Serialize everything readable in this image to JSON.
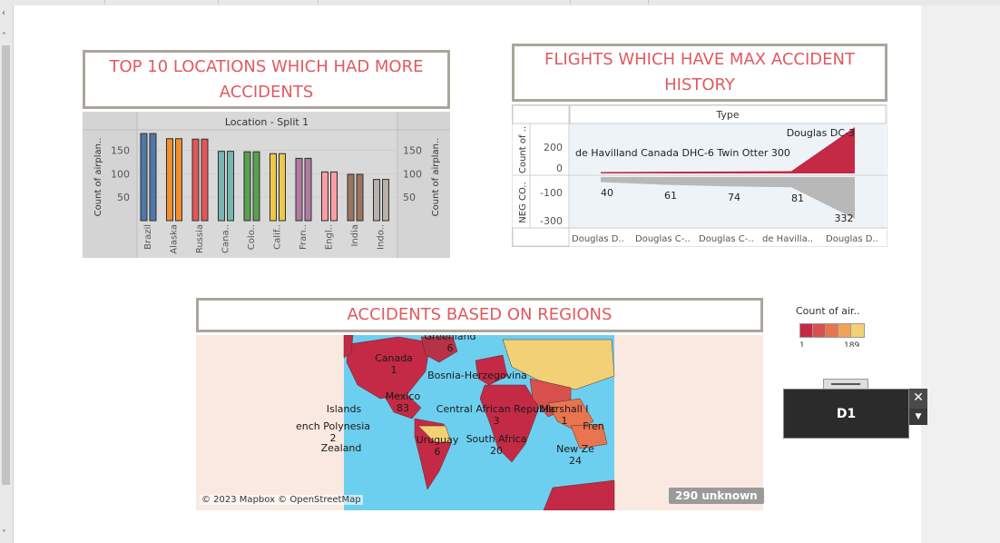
{
  "title_top10": "TOP 10 LOCATIONS WHICH HAD MORE ACCIDENTS",
  "title_flights": "FLIGHTS WHICH HAVE MAX ACCIDENT HISTORY",
  "title_regions": "ACCIDENTS BASED ON REGIONS",
  "chart_data": [
    {
      "type": "bar",
      "header": "Location - Split 1",
      "ylabel": "Count of airplan..",
      "ylabel_right": "Count of airplan..",
      "ylim": [
        0,
        190
      ],
      "yticks": [
        50,
        100,
        150
      ],
      "categories": [
        "Brazil",
        "Alaska",
        "Russia",
        "Cana..",
        "Colo..",
        "Calif..",
        "Fran..",
        "Engl..",
        "India",
        "Indo.."
      ],
      "values": [
        [
          186,
          186
        ],
        [
          175,
          175
        ],
        [
          174,
          174
        ],
        [
          148,
          148
        ],
        [
          147,
          147
        ],
        [
          143,
          143
        ],
        [
          133,
          133
        ],
        [
          104,
          104
        ],
        [
          99,
          99
        ],
        [
          88,
          88
        ]
      ],
      "colors": [
        "#4e79a7",
        "#f28e2b",
        "#e15759",
        "#76b7b2",
        "#59a14f",
        "#edc948",
        "#b07aa1",
        "#ff9da7",
        "#9c755f",
        "#bab0ac"
      ]
    },
    {
      "type": "area",
      "header": "Type",
      "ylabel_top": "Count of ..",
      "ylabel_bottom": "NEG CO..",
      "categories": [
        "Douglas D..",
        "Douglas C-..",
        "Douglas C-..",
        "de Havilla..",
        "Douglas D.."
      ],
      "top_values": [
        10,
        12,
        14,
        16,
        332
      ],
      "bottom_values": [
        -40,
        -61,
        -74,
        -81,
        -332
      ],
      "bottom_labels": [
        "40",
        "61",
        "74",
        "81",
        "332"
      ],
      "top_yticks": [
        "200",
        "0"
      ],
      "bottom_yticks": [
        "-100",
        "-300"
      ],
      "annotations": [
        "de Havilland Canada DHC-6 Twin Otter 300",
        "Douglas DC-3"
      ]
    }
  ],
  "map": {
    "labels": [
      {
        "name": "Greenland",
        "count": "6"
      },
      {
        "name": "Canada",
        "count": "1"
      },
      {
        "name": "Bosnia-Herzegovina",
        "count": ""
      },
      {
        "name": "Mexico",
        "count": "83"
      },
      {
        "name": "Islands",
        "count": ""
      },
      {
        "name": "ench Polynesia",
        "count": "2"
      },
      {
        "name": "Zealand",
        "count": ""
      },
      {
        "name": "Uruguay",
        "count": "6"
      },
      {
        "name": "Central African Republic",
        "count": "3"
      },
      {
        "name": "South Africa",
        "count": "20"
      },
      {
        "name": "Marshall I",
        "count": "1"
      },
      {
        "name": "Fren",
        "count": ""
      },
      {
        "name": "New Ze",
        "count": "24"
      }
    ],
    "credit": "© 2023 Mapbox © OpenStreetMap",
    "unknown": "290 unknown"
  },
  "legend": {
    "title": "Count of air..",
    "min": "1",
    "max": "189",
    "colors": [
      "#c42a45",
      "#d8504d",
      "#e8754f",
      "#f3a25a",
      "#f2d176"
    ]
  },
  "filter": {
    "label": "D1",
    "close_icon": "close-icon",
    "dropdown_icon": "chevron-down-icon"
  },
  "colors": {
    "title_text": "#e05a5f",
    "title_border": "#aaa69c",
    "top_area": "#c42a45",
    "bottom_area": "#b8b8b8",
    "map_ocean": "#6dcff0",
    "map_bg": "#fae9e1"
  }
}
